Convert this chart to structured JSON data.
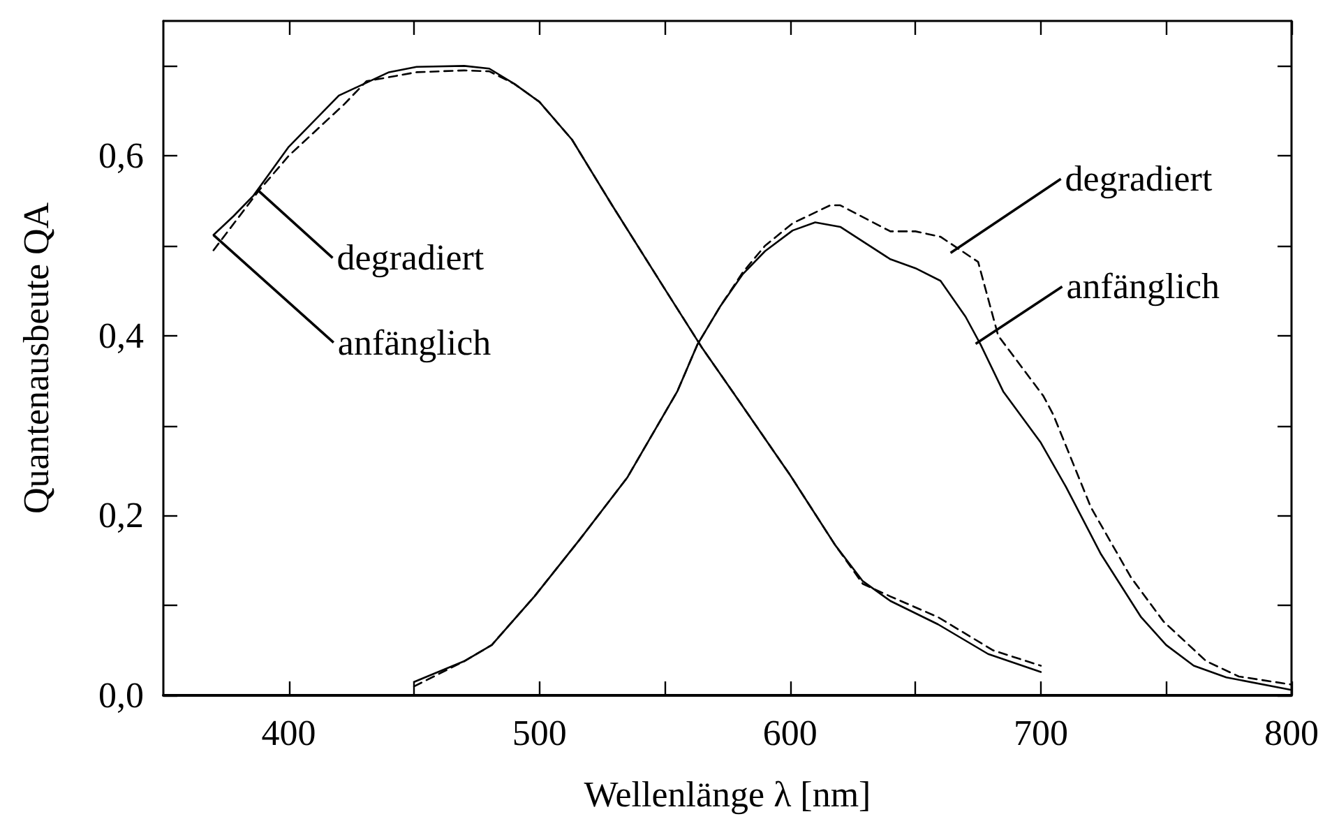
{
  "chart_data": {
    "type": "line",
    "xlabel": "Wellenlänge λ [nm]",
    "ylabel": "Quantenausbeute QA",
    "xlim": [
      350,
      800
    ],
    "xticks": [
      {
        "value": 400,
        "label": "400"
      },
      {
        "value": 450,
        "label": null
      },
      {
        "value": 500,
        "label": "500"
      },
      {
        "value": 550,
        "label": null
      },
      {
        "value": 600,
        "label": "600"
      },
      {
        "value": 650,
        "label": null
      },
      {
        "value": 700,
        "label": "700"
      },
      {
        "value": 750,
        "label": null
      },
      {
        "value": 800,
        "label": "800"
      }
    ],
    "ylim": [
      0,
      0.75
    ],
    "yticks": [
      {
        "value": 0,
        "label": "0,0"
      },
      {
        "value": 0.1,
        "label": null
      },
      {
        "value": 0.2,
        "label": "0,2"
      },
      {
        "value": 0.3,
        "label": null
      },
      {
        "value": 0.4,
        "label": "0,4"
      },
      {
        "value": 0.5,
        "label": null
      },
      {
        "value": 0.6,
        "label": "0,6"
      },
      {
        "value": 0.7,
        "label": null
      }
    ],
    "grid": false,
    "marker": "none",
    "series": [
      {
        "color": "#000000",
        "line_style": "solid",
        "x": [
          370,
          378,
          386,
          400,
          420,
          440,
          451,
          470,
          480,
          490,
          500,
          513,
          529,
          550,
          565,
          577,
          600,
          618,
          629,
          640,
          659,
          679,
          700
        ],
        "values": [
          0.512,
          0.533,
          0.556,
          0.61,
          0.667,
          0.693,
          0.699,
          0.7,
          0.697,
          0.68,
          0.66,
          0.618,
          0.545,
          0.452,
          0.386,
          0.338,
          0.245,
          0.167,
          0.127,
          0.105,
          0.079,
          0.046,
          0.026
        ]
      },
      {
        "color": "#000000",
        "line_style": "dashed",
        "x": [
          370,
          388,
          400,
          422,
          431,
          451,
          470,
          480,
          490,
          500,
          513,
          529,
          550,
          565,
          577,
          600,
          618,
          629,
          640,
          659,
          681,
          700
        ],
        "values": [
          0.495,
          0.561,
          0.6,
          0.657,
          0.683,
          0.693,
          0.695,
          0.694,
          0.68,
          0.66,
          0.618,
          0.545,
          0.452,
          0.386,
          0.338,
          0.245,
          0.167,
          0.124,
          0.11,
          0.087,
          0.05,
          0.033
        ]
      },
      {
        "color": "#000000",
        "line_style": "solid",
        "x": [
          450,
          470,
          481,
          498,
          516,
          535,
          555,
          563,
          572,
          581,
          590,
          601,
          610,
          620,
          640,
          650,
          660,
          670,
          676,
          685,
          700,
          710,
          724,
          740,
          750,
          761,
          774,
          800
        ],
        "values": [
          0.015,
          0.038,
          0.056,
          0.11,
          0.173,
          0.242,
          0.338,
          0.39,
          0.432,
          0.468,
          0.494,
          0.517,
          0.526,
          0.521,
          0.485,
          0.475,
          0.461,
          0.421,
          0.39,
          0.338,
          0.281,
          0.232,
          0.157,
          0.087,
          0.056,
          0.033,
          0.02,
          0.006
        ]
      },
      {
        "color": "#000000",
        "line_style": "dashed",
        "x": [
          450,
          470,
          481,
          498,
          516,
          535,
          555,
          563,
          572,
          581,
          590,
          601,
          616,
          620,
          640,
          650,
          660,
          675,
          683,
          701,
          705,
          720,
          736,
          749,
          766,
          779,
          800
        ],
        "values": [
          0.01,
          0.038,
          0.056,
          0.11,
          0.173,
          0.242,
          0.338,
          0.39,
          0.432,
          0.47,
          0.5,
          0.525,
          0.545,
          0.545,
          0.516,
          0.516,
          0.51,
          0.482,
          0.4,
          0.333,
          0.312,
          0.209,
          0.131,
          0.082,
          0.038,
          0.021,
          0.012
        ]
      }
    ],
    "annotations": [
      {
        "text": "degradiert",
        "x": 388,
        "y": 0.561
      },
      {
        "text": "anfänglich",
        "x": 370,
        "y": 0.512
      },
      {
        "text": "degradiert",
        "x": 664,
        "y": 0.492
      },
      {
        "text": "anfänglich",
        "x": 674,
        "y": 0.391
      }
    ]
  }
}
